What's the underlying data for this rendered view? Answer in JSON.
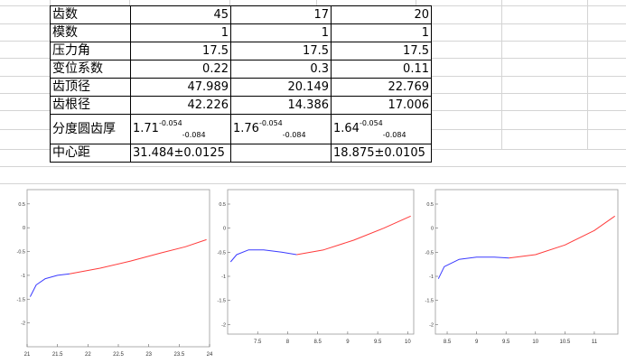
{
  "table": {
    "rows": [
      {
        "label": "齿数",
        "c1": "45",
        "c2": "17",
        "c3": "20"
      },
      {
        "label": "模数",
        "c1": "1",
        "c2": "1",
        "c3": "1"
      },
      {
        "label": "压力角",
        "c1": "17.5",
        "c2": "17.5",
        "c3": "17.5"
      },
      {
        "label": "变位系数",
        "c1": "0.22",
        "c2": "0.3",
        "c3": "0.11"
      },
      {
        "label": "齿顶径",
        "c1": "47.989",
        "c2": "20.149",
        "c3": "22.769"
      },
      {
        "label": "齿根径",
        "c1": "42.226",
        "c2": "14.386",
        "c3": "17.006"
      }
    ],
    "thickness": {
      "label": "分度圆齿厚",
      "c1": {
        "base": "1.71",
        "upper": "-0.054",
        "lower": "-0.084"
      },
      "c2": {
        "base": "1.76",
        "upper": "-0.054",
        "lower": "-0.084"
      },
      "c3": {
        "base": "1.64",
        "upper": "-0.054",
        "lower": "-0.084"
      }
    },
    "center": {
      "label": "中心距",
      "c1": "31.484±0.0125",
      "c2": "",
      "c3": "18.875±0.0105"
    }
  },
  "colors": {
    "blue_curve": "#3b3bff",
    "red_curve": "#ff3b3b",
    "grid": "#d4d4d4"
  },
  "chart_data": [
    {
      "type": "line",
      "xlim": [
        21,
        24
      ],
      "ylim": [
        -2.5,
        0.8
      ],
      "xticks": [
        "21",
        "21.5",
        "22",
        "22.5",
        "23",
        "23.5",
        "24"
      ],
      "yticks": [
        "0.5",
        "0",
        "-0.5",
        "-1",
        "-1.5",
        "-2"
      ],
      "series": [
        {
          "color": "blue",
          "x": [
            21.05,
            21.15,
            21.3,
            21.5,
            21.7
          ],
          "y": [
            -1.45,
            -1.2,
            -1.07,
            -1.0,
            -0.97
          ]
        },
        {
          "color": "red",
          "x": [
            21.7,
            22.2,
            22.7,
            23.2,
            23.6,
            23.95
          ],
          "y": [
            -0.97,
            -0.85,
            -0.7,
            -0.53,
            -0.4,
            -0.25
          ]
        }
      ]
    },
    {
      "type": "line",
      "xlim": [
        7.0,
        10.1
      ],
      "ylim": [
        -2.2,
        0.8
      ],
      "xticks": [
        "7.5",
        "8",
        "8.5",
        "9",
        "9.5",
        "10"
      ],
      "yticks": [
        "0.5",
        "0",
        "-0.5",
        "-1",
        "-1.5",
        "-2"
      ],
      "series": [
        {
          "color": "blue",
          "x": [
            7.05,
            7.15,
            7.35,
            7.6,
            7.9,
            8.15
          ],
          "y": [
            -0.7,
            -0.55,
            -0.45,
            -0.45,
            -0.5,
            -0.55
          ]
        },
        {
          "color": "red",
          "x": [
            8.15,
            8.6,
            9.1,
            9.6,
            10.05
          ],
          "y": [
            -0.55,
            -0.45,
            -0.25,
            0.0,
            0.25
          ]
        }
      ]
    },
    {
      "type": "line",
      "xlim": [
        8.3,
        11.4
      ],
      "ylim": [
        -2.2,
        0.8
      ],
      "xticks": [
        "8.5",
        "9",
        "9.5",
        "10",
        "10.5",
        "11"
      ],
      "yticks": [
        "0.5",
        "0",
        "-0.5",
        "-1",
        "-1.5",
        "-2"
      ],
      "series": [
        {
          "color": "blue",
          "x": [
            8.35,
            8.45,
            8.7,
            9.0,
            9.3,
            9.55
          ],
          "y": [
            -1.05,
            -0.8,
            -0.65,
            -0.6,
            -0.6,
            -0.62
          ]
        },
        {
          "color": "red",
          "x": [
            9.55,
            10.0,
            10.5,
            11.0,
            11.35
          ],
          "y": [
            -0.62,
            -0.55,
            -0.35,
            -0.05,
            0.25
          ]
        }
      ]
    }
  ]
}
